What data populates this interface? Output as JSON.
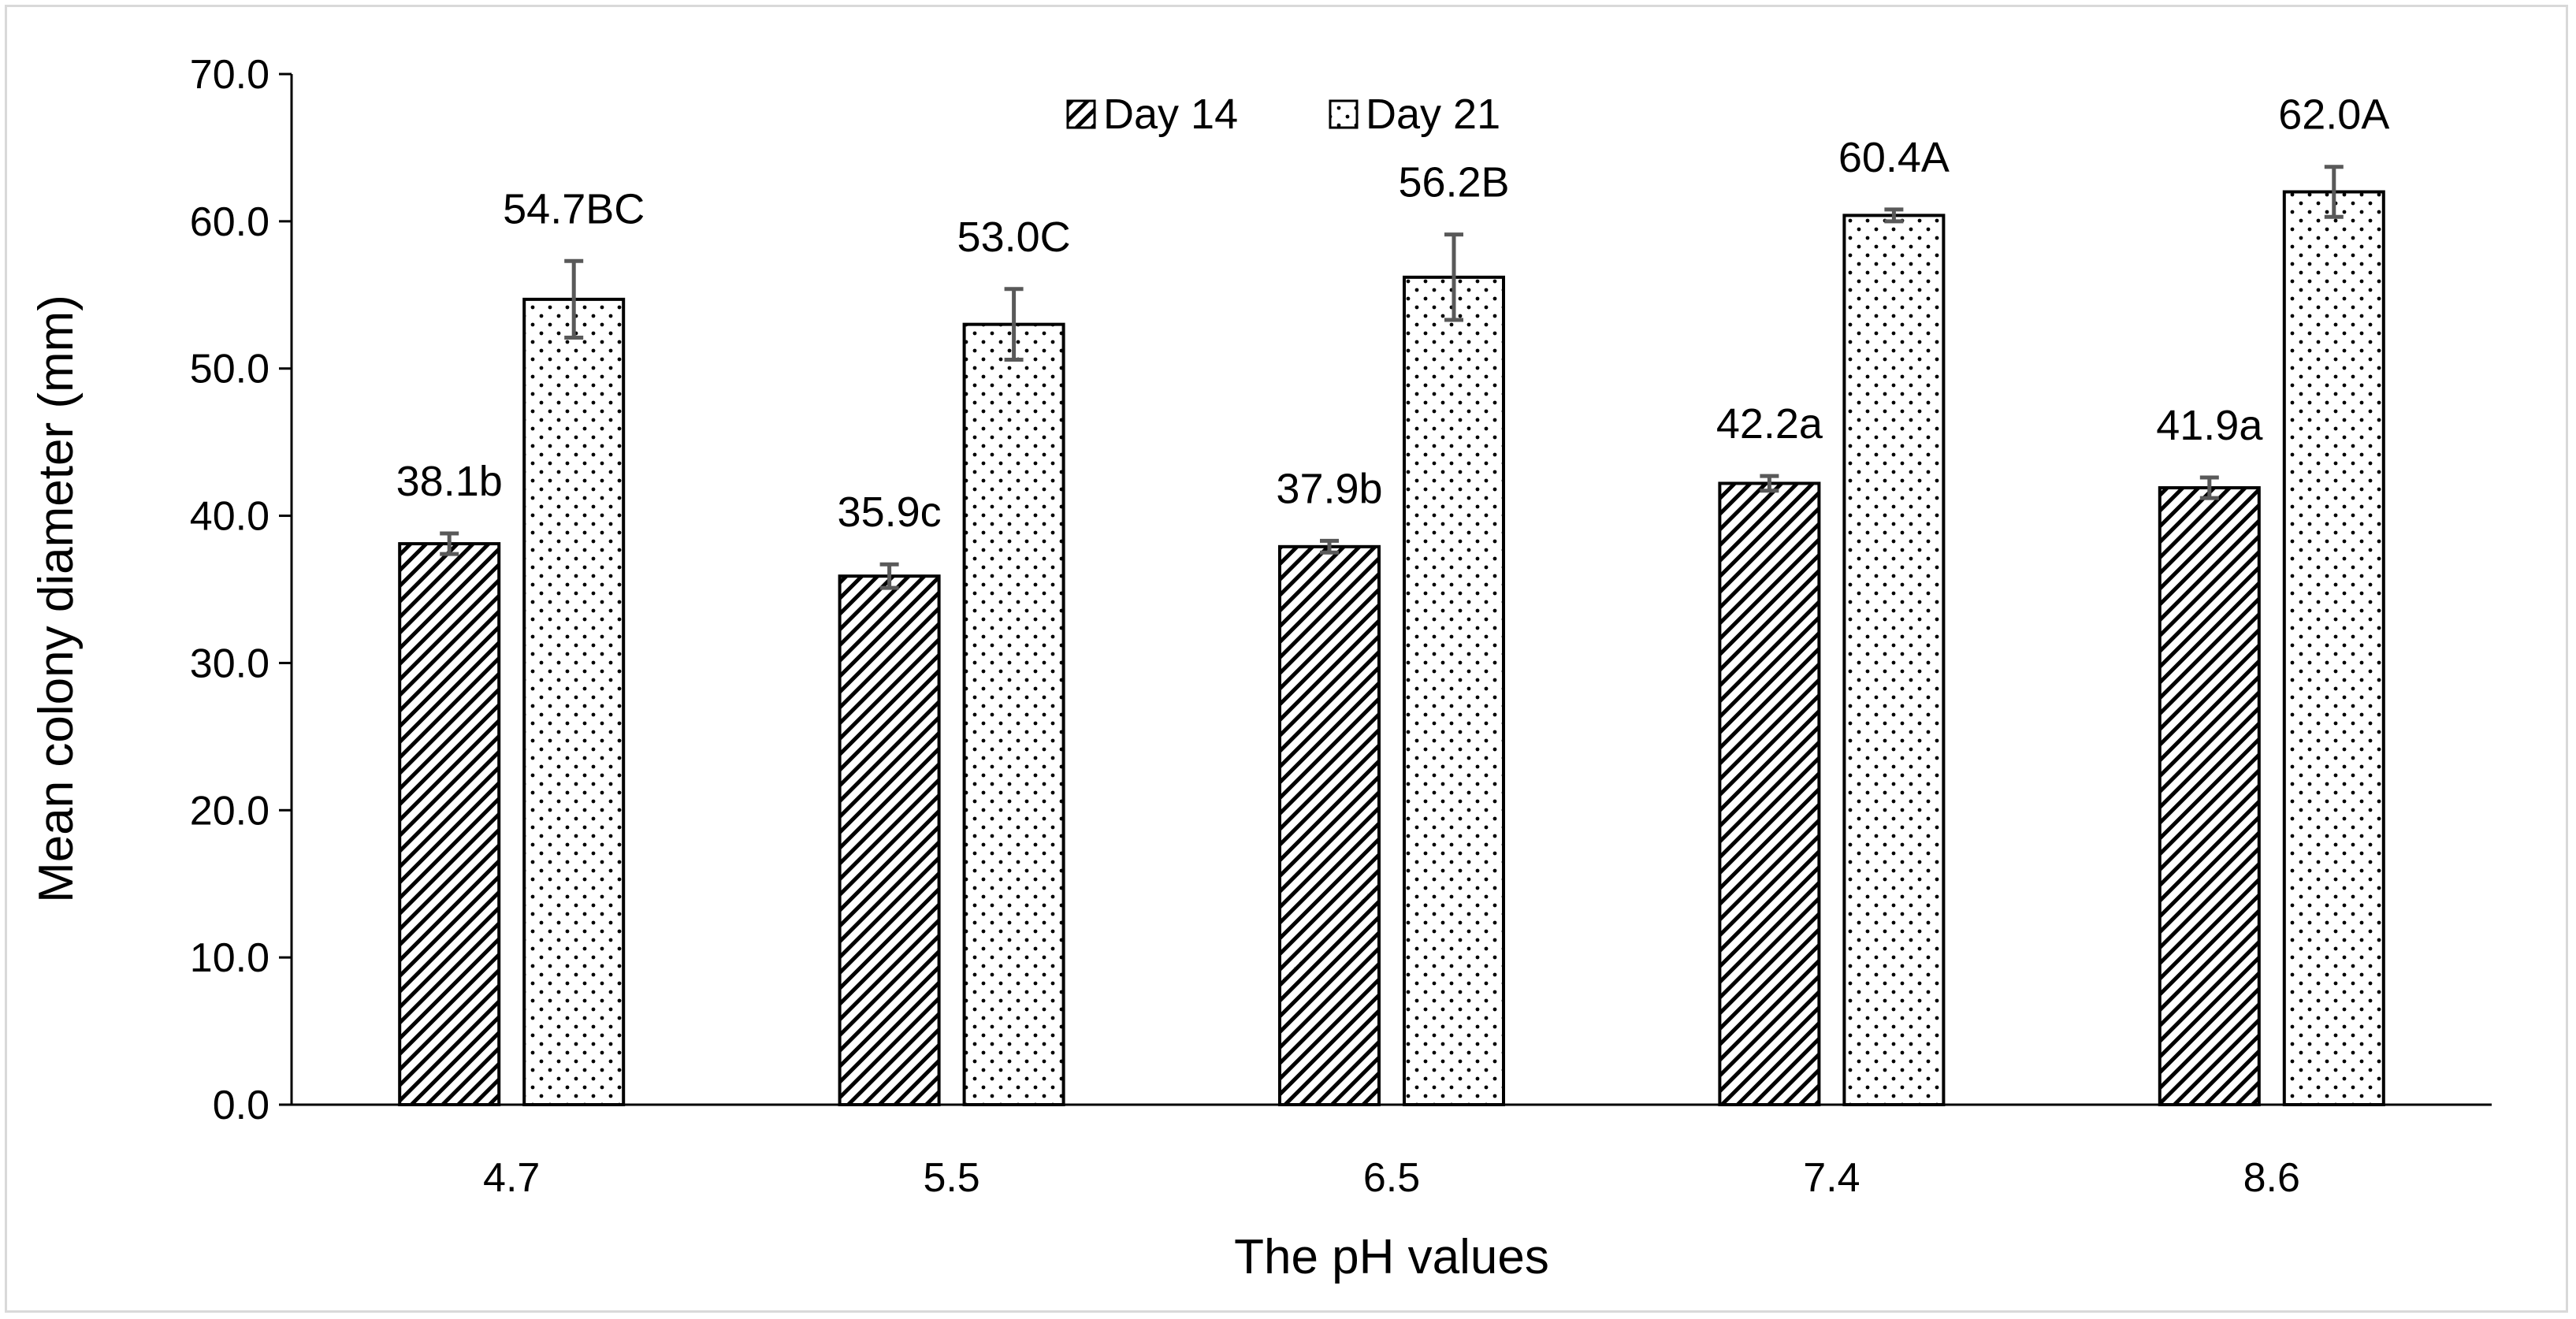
{
  "chart_data": {
    "type": "bar",
    "title": "",
    "xlabel": "The pH values",
    "ylabel": "Mean colony diameter (mm)",
    "ylim": [
      0,
      70
    ],
    "y_ticks": [
      "0.0",
      "10.0",
      "20.0",
      "30.0",
      "40.0",
      "50.0",
      "60.0",
      "70.0"
    ],
    "categories": [
      "4.7",
      "5.5",
      "6.5",
      "7.4",
      "8.6"
    ],
    "grid": false,
    "legend_position": "top-center",
    "series": [
      {
        "name": "Day 14",
        "pattern": "diagonal-hatch",
        "values": [
          38.1,
          35.9,
          37.9,
          42.2,
          41.9
        ],
        "errors": [
          0.7,
          0.8,
          0.4,
          0.5,
          0.7
        ],
        "labels": [
          "38.1b",
          "35.9c",
          "37.9b",
          "42.2a",
          "41.9a"
        ]
      },
      {
        "name": "Day 21",
        "pattern": "dots",
        "values": [
          54.7,
          53.0,
          56.2,
          60.4,
          62.0
        ],
        "errors": [
          2.6,
          2.4,
          2.9,
          0.4,
          1.7
        ],
        "labels": [
          "54.7BC",
          "53.0C",
          "56.2B",
          "60.4A",
          "62.0A"
        ]
      }
    ],
    "colors": {
      "bar_stroke": "#000000",
      "error_bar": "#595959",
      "axis": "#000000",
      "frame": "#d9d9d9"
    }
  }
}
